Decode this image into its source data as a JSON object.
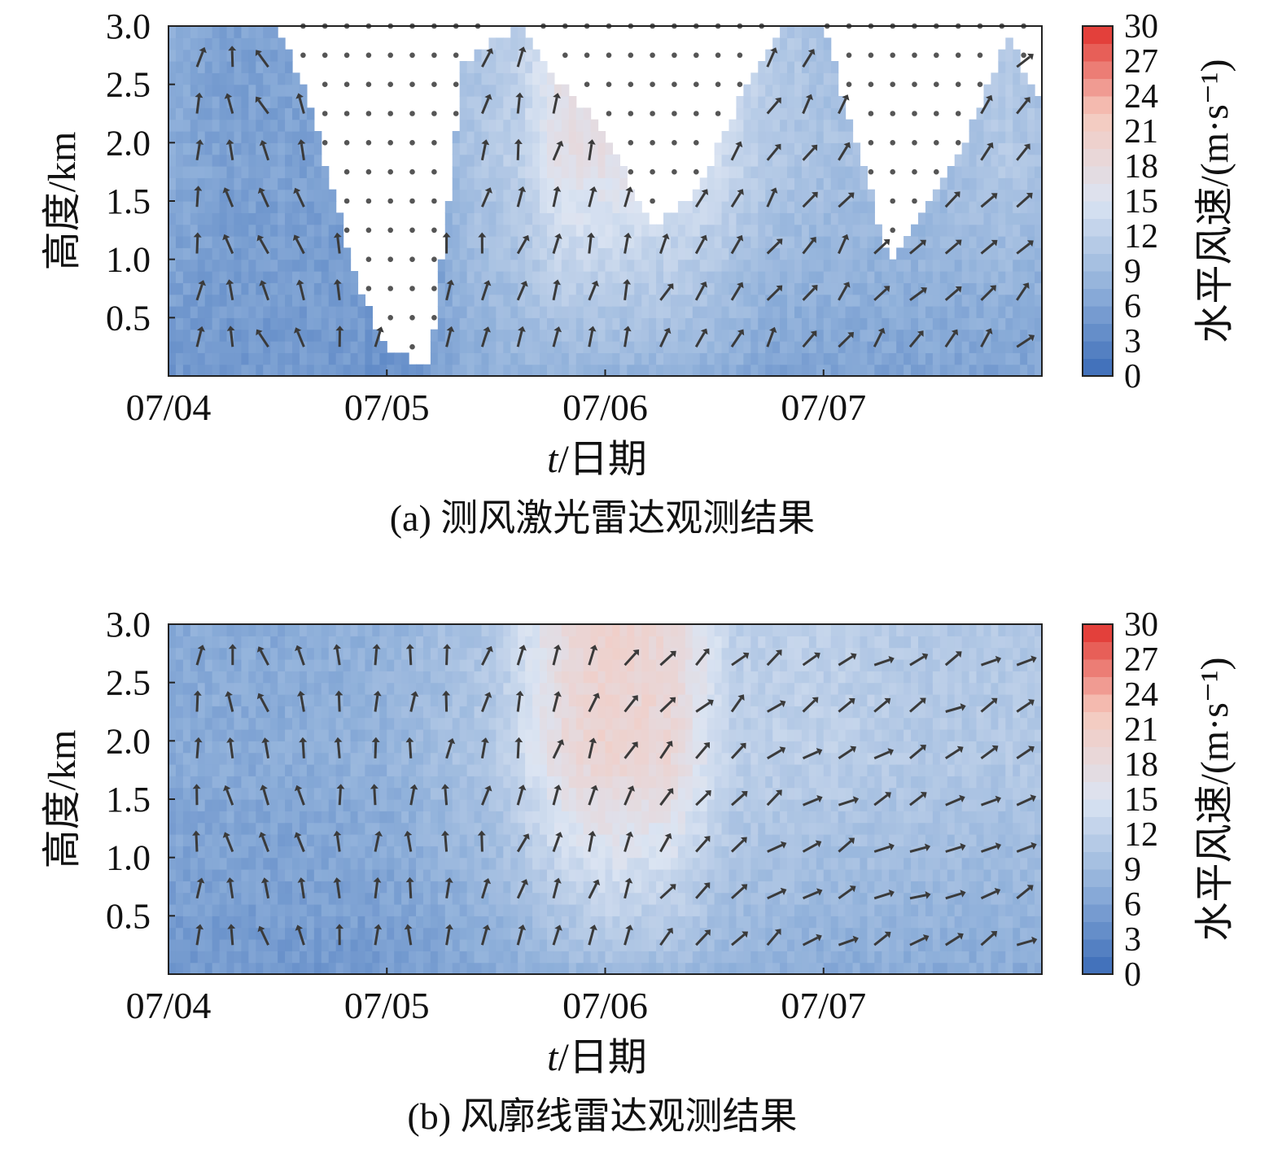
{
  "chart_data": [
    {
      "type": "heatmap",
      "panel": "a",
      "caption": "(a) 测风激光雷达观测结果",
      "xlabel_italic": "t",
      "xlabel_rest": "/日期",
      "ylabel": "高度/km",
      "colorbar_label": "水平风速/(m·s⁻¹)",
      "x_ticks": [
        "07/04",
        "07/05",
        "07/06",
        "07/07"
      ],
      "y_ticks": [
        "0.5",
        "1.0",
        "1.5",
        "2.0",
        "2.5",
        "3.0"
      ],
      "colorbar_ticks": [
        "0",
        "3",
        "6",
        "9",
        "12",
        "15",
        "18",
        "21",
        "24",
        "27",
        "30"
      ],
      "xlim_days": [
        0,
        4
      ],
      "ylim_km": [
        0,
        3.0
      ],
      "clim": [
        0,
        30
      ],
      "colormap": [
        "#3a6bb7",
        "#8fb0da",
        "#dbe4f2",
        "#f6c9bd",
        "#e1312d"
      ],
      "no_data_marker": "gray dots",
      "speed_profile_by_time": [
        {
          "t": 0.0,
          "top_km": 3.0,
          "speed_low": 5,
          "speed_high": 7
        },
        {
          "t": 0.25,
          "top_km": 3.0,
          "speed_low": 5,
          "speed_high": 6
        },
        {
          "t": 0.5,
          "top_km": 3.0,
          "speed_low": 5,
          "speed_high": 6
        },
        {
          "t": 0.65,
          "top_km": 2.3,
          "speed_low": 5,
          "speed_high": 6
        },
        {
          "t": 0.85,
          "top_km": 0.9,
          "speed_low": 5,
          "speed_high": 6
        },
        {
          "t": 1.0,
          "top_km": 0.2,
          "speed_low": 4,
          "speed_high": 5
        },
        {
          "t": 1.2,
          "top_km": 0.1,
          "speed_low": 5,
          "speed_high": 6
        },
        {
          "t": 1.35,
          "top_km": 2.7,
          "speed_low": 7,
          "speed_high": 10
        },
        {
          "t": 1.6,
          "top_km": 3.0,
          "speed_low": 8,
          "speed_high": 12
        },
        {
          "t": 1.8,
          "top_km": 2.5,
          "speed_low": 8,
          "speed_high": 17
        },
        {
          "t": 2.0,
          "top_km": 2.1,
          "speed_low": 8,
          "speed_high": 17
        },
        {
          "t": 2.2,
          "top_km": 1.3,
          "speed_low": 8,
          "speed_high": 16
        },
        {
          "t": 2.4,
          "top_km": 1.5,
          "speed_low": 8,
          "speed_high": 15
        },
        {
          "t": 2.6,
          "top_km": 2.3,
          "speed_low": 7,
          "speed_high": 13
        },
        {
          "t": 2.8,
          "top_km": 3.0,
          "speed_low": 6,
          "speed_high": 11
        },
        {
          "t": 3.0,
          "top_km": 3.0,
          "speed_low": 6,
          "speed_high": 10
        },
        {
          "t": 3.3,
          "top_km": 1.0,
          "speed_low": 6,
          "speed_high": 10
        },
        {
          "t": 3.6,
          "top_km": 1.8,
          "speed_low": 6,
          "speed_high": 10
        },
        {
          "t": 3.85,
          "top_km": 2.9,
          "speed_low": 6,
          "speed_high": 11
        },
        {
          "t": 4.0,
          "top_km": 2.3,
          "speed_low": 6,
          "speed_high": 10
        }
      ],
      "wind_direction_deg": [
        {
          "t": 0.0,
          "dir": 20
        },
        {
          "t": 0.5,
          "dir": -30
        },
        {
          "t": 1.0,
          "dir": 10
        },
        {
          "t": 1.5,
          "dir": 15
        },
        {
          "t": 2.0,
          "dir": 20
        },
        {
          "t": 2.5,
          "dir": 30
        },
        {
          "t": 3.0,
          "dir": 35
        },
        {
          "t": 3.5,
          "dir": 40
        },
        {
          "t": 4.0,
          "dir": 45
        }
      ]
    },
    {
      "type": "heatmap",
      "panel": "b",
      "caption": "(b) 风廓线雷达观测结果",
      "xlabel_italic": "t",
      "xlabel_rest": "/日期",
      "ylabel": "高度/km",
      "colorbar_label": "水平风速/(m·s⁻¹)",
      "x_ticks": [
        "07/04",
        "07/05",
        "07/06",
        "07/07"
      ],
      "y_ticks": [
        "0.5",
        "1.0",
        "1.5",
        "2.0",
        "2.5",
        "3.0"
      ],
      "colorbar_ticks": [
        "0",
        "3",
        "6",
        "9",
        "12",
        "15",
        "18",
        "21",
        "24",
        "27",
        "30"
      ],
      "xlim_days": [
        0,
        4
      ],
      "ylim_km": [
        0,
        3.0
      ],
      "clim": [
        0,
        30
      ],
      "colormap": [
        "#3a6bb7",
        "#8fb0da",
        "#dbe4f2",
        "#f6c9bd",
        "#e1312d"
      ],
      "speed_profile_by_time": [
        {
          "t": 0.0,
          "speed_low": 5,
          "speed_high": 7
        },
        {
          "t": 0.5,
          "speed_low": 5,
          "speed_high": 7
        },
        {
          "t": 1.0,
          "speed_low": 5,
          "speed_high": 8
        },
        {
          "t": 1.5,
          "speed_low": 7,
          "speed_high": 11
        },
        {
          "t": 1.8,
          "speed_low": 8,
          "speed_high": 18
        },
        {
          "t": 2.0,
          "speed_low": 9,
          "speed_high": 20
        },
        {
          "t": 2.3,
          "speed_low": 9,
          "speed_high": 19
        },
        {
          "t": 2.6,
          "speed_low": 8,
          "speed_high": 12
        },
        {
          "t": 3.0,
          "speed_low": 7,
          "speed_high": 12
        },
        {
          "t": 3.5,
          "speed_low": 7,
          "speed_high": 11
        },
        {
          "t": 4.0,
          "speed_low": 7,
          "speed_high": 11
        }
      ],
      "wind_direction_deg": [
        {
          "t": 0.0,
          "dir": 10
        },
        {
          "t": 0.5,
          "dir": -20
        },
        {
          "t": 1.0,
          "dir": 0
        },
        {
          "t": 1.5,
          "dir": 15
        },
        {
          "t": 2.0,
          "dir": 25
        },
        {
          "t": 2.5,
          "dir": 45
        },
        {
          "t": 3.0,
          "dir": 60
        },
        {
          "t": 3.5,
          "dir": 65
        },
        {
          "t": 4.0,
          "dir": 60
        }
      ]
    }
  ]
}
